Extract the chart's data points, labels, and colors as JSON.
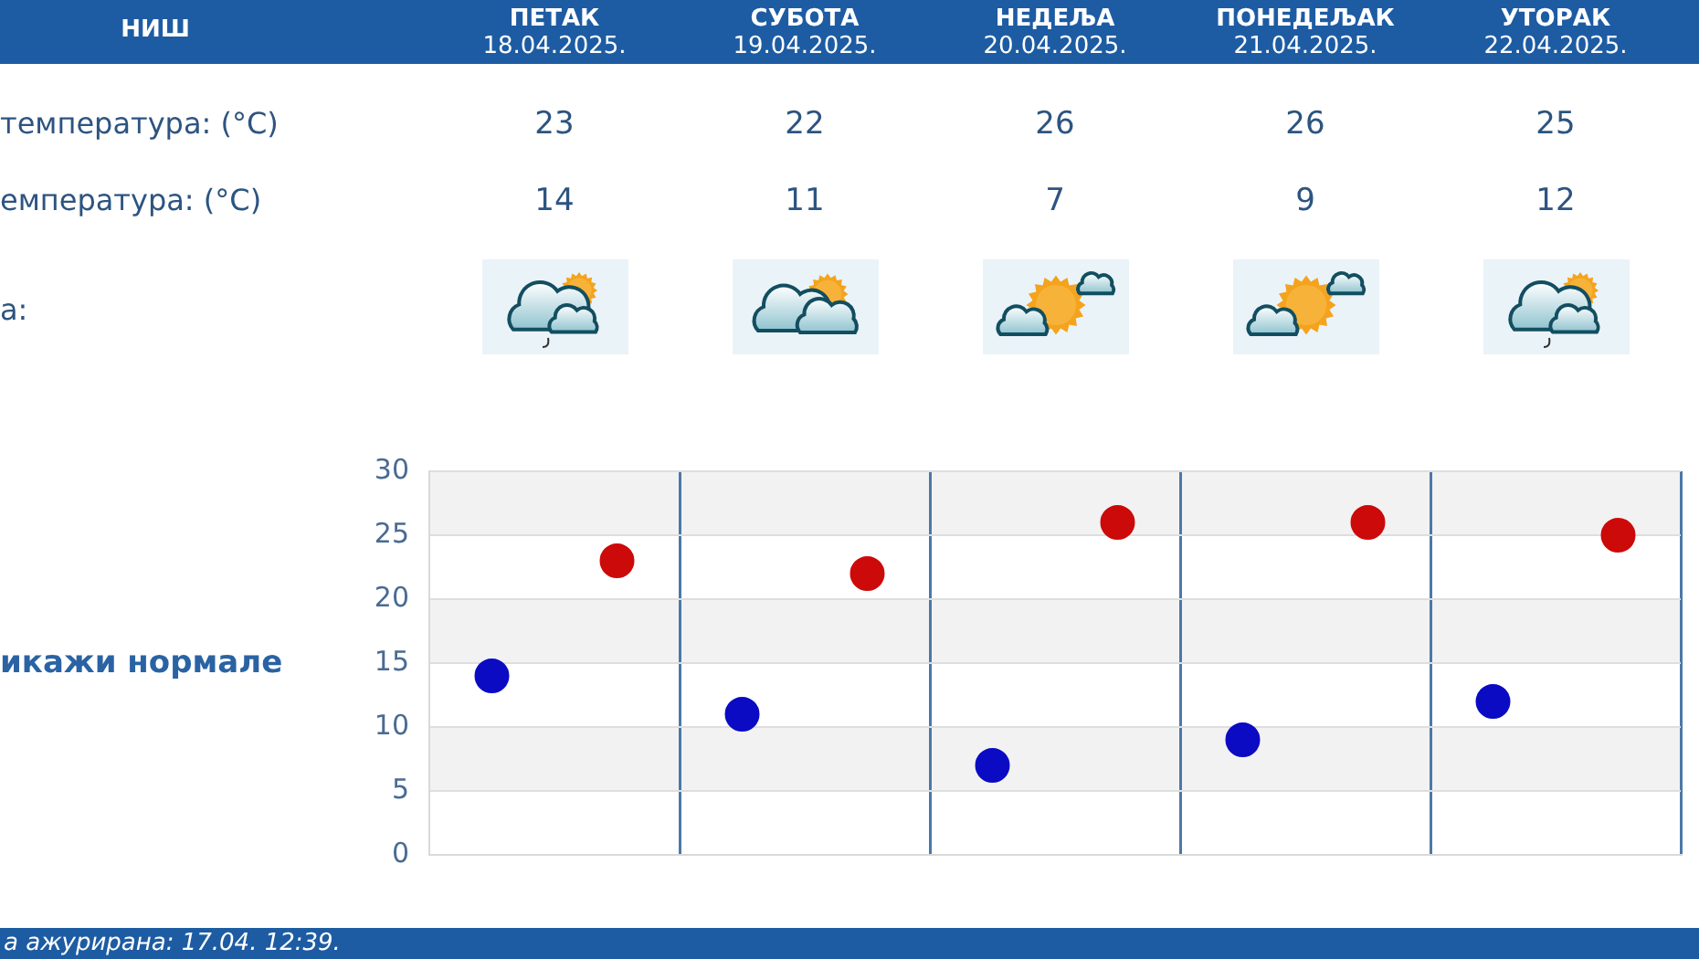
{
  "chart_data": {
    "type": "scatter",
    "title": "НИШ",
    "categories": [
      null,
      null,
      null,
      null,
      null
    ],
    "series": [
      {
        "color": "#cc0a0a",
        "values": [
          23,
          22,
          26,
          26,
          25
        ]
      },
      {
        "color": "#0b0bc4",
        "values": [
          14,
          11,
          7,
          9,
          12
        ]
      }
    ],
    "ylim": [
      0,
      30
    ],
    "yticks": [
      0,
      5,
      10,
      15,
      20,
      25,
      30
    ],
    "grid": true,
    "marker": "circle",
    "data_labels": true,
    "tick_labels": "y",
    "annotations": [
      "ПЕТАК\n18.04.2025.",
      "СУБОТА\n19.04.2025.",
      "НЕДЕЉА\n20.04.2025.",
      "ПОНЕДЕЉАК\n21.04.2025.",
      "УТОРАК\n22.04.2025.",
      "температура: (°C)",
      "емпература: (°C)",
      "а:",
      "икажи нормале",
      "а ажурирана: 17.04. 12:39."
    ]
  }
}
